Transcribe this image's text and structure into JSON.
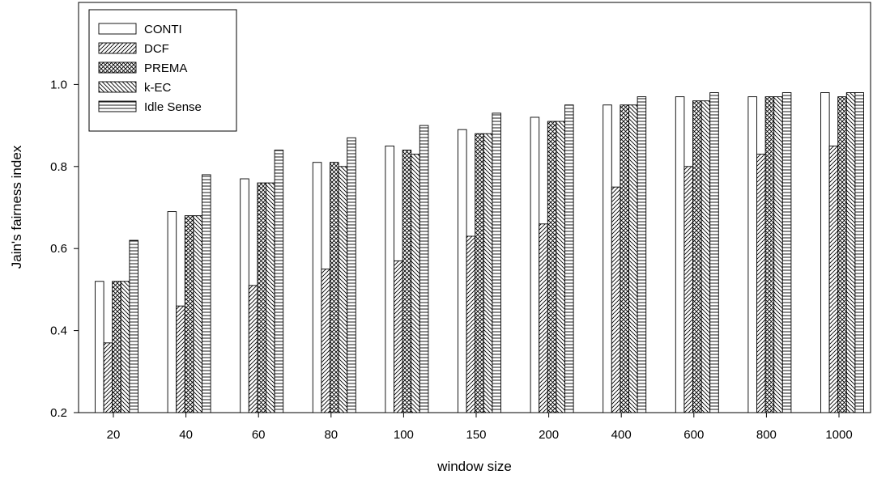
{
  "chart_data": {
    "type": "bar",
    "title": "",
    "xlabel": "window size",
    "ylabel": "Jain's fairness index",
    "categories": [
      "20",
      "40",
      "60",
      "80",
      "100",
      "150",
      "200",
      "400",
      "600",
      "800",
      "1000"
    ],
    "ylim": [
      0.2,
      1.2
    ],
    "yticks": [
      "0.2",
      "0.4",
      "0.6",
      "0.8",
      "1.0"
    ],
    "grid": false,
    "legend_position": "top-left",
    "series": [
      {
        "name": "CONTI",
        "pattern": "blank",
        "values": [
          0.52,
          0.69,
          0.77,
          0.81,
          0.85,
          0.89,
          0.92,
          0.95,
          0.97,
          0.97,
          0.98
        ]
      },
      {
        "name": "DCF",
        "pattern": "diagonal",
        "values": [
          0.37,
          0.46,
          0.51,
          0.55,
          0.57,
          0.63,
          0.66,
          0.75,
          0.8,
          0.83,
          0.85
        ]
      },
      {
        "name": "PREMA",
        "pattern": "crosshatch",
        "values": [
          0.52,
          0.68,
          0.76,
          0.81,
          0.84,
          0.88,
          0.91,
          0.95,
          0.96,
          0.97,
          0.97
        ]
      },
      {
        "name": "k-EC",
        "pattern": "backdiagonal",
        "values": [
          0.52,
          0.68,
          0.76,
          0.8,
          0.83,
          0.88,
          0.91,
          0.95,
          0.96,
          0.97,
          0.98
        ]
      },
      {
        "name": "Idle Sense",
        "pattern": "horizontal",
        "values": [
          0.62,
          0.78,
          0.84,
          0.87,
          0.9,
          0.93,
          0.95,
          0.97,
          0.98,
          0.98,
          0.98
        ]
      }
    ]
  }
}
